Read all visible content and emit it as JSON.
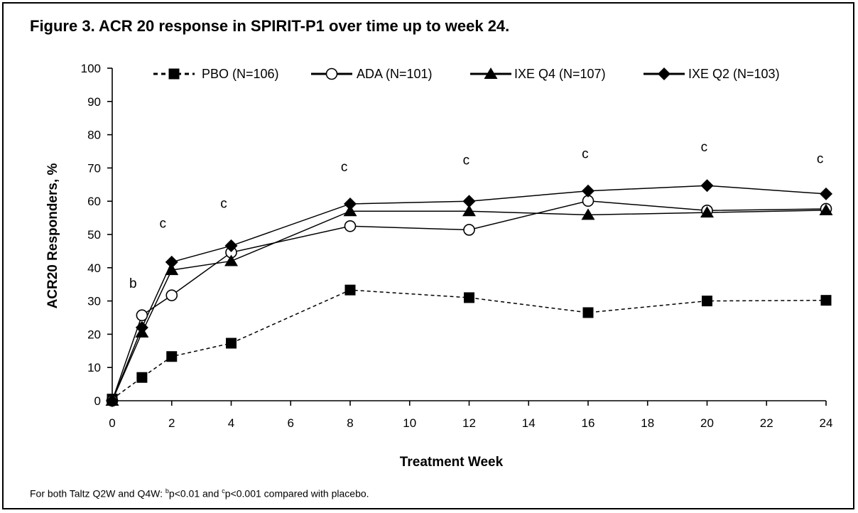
{
  "chart_data": {
    "type": "line",
    "title": "Figure 3. ACR 20 response in SPIRIT-P1 over time up to week 24.",
    "xlabel": "Treatment Week",
    "ylabel": "ACR20 Responders, %",
    "xlim": [
      0,
      24
    ],
    "ylim": [
      0,
      100
    ],
    "xticks": [
      0,
      2,
      4,
      6,
      8,
      10,
      12,
      14,
      16,
      18,
      20,
      22,
      24
    ],
    "yticks": [
      0,
      10,
      20,
      30,
      40,
      50,
      60,
      70,
      80,
      90,
      100
    ],
    "grid": false,
    "legend_position": "top",
    "series": [
      {
        "name": "PBO (N=106)",
        "marker": "square",
        "line": "dashed",
        "x": [
          0,
          1,
          2,
          4,
          8,
          12,
          16,
          20,
          24
        ],
        "y": [
          0.5,
          7,
          13.3,
          17.3,
          33.3,
          31,
          26.5,
          30,
          30.2
        ]
      },
      {
        "name": "ADA (N=101)",
        "marker": "circle-open",
        "line": "solid",
        "x": [
          0,
          1,
          2,
          4,
          8,
          12,
          16,
          20,
          24
        ],
        "y": [
          0,
          25.7,
          31.7,
          44.6,
          52.5,
          51.4,
          60.1,
          57.2,
          57.7
        ]
      },
      {
        "name": "IXE Q4 (N=107)",
        "marker": "triangle",
        "line": "solid",
        "x": [
          0,
          1,
          2,
          4,
          8,
          12,
          16,
          20,
          24
        ],
        "y": [
          0,
          20.5,
          39.3,
          42,
          57,
          57,
          55.9,
          56.6,
          57.3
        ]
      },
      {
        "name": "IXE Q2 (N=103)",
        "marker": "diamond",
        "line": "solid",
        "x": [
          0,
          1,
          2,
          4,
          8,
          12,
          16,
          20,
          24
        ],
        "y": [
          0,
          22,
          41.7,
          46.6,
          59.2,
          60,
          63.1,
          64.7,
          62.2
        ]
      }
    ],
    "annotations": [
      {
        "text": "b",
        "x": 0.7,
        "y": 34
      },
      {
        "text": "c",
        "x": 1.7,
        "y": 52
      },
      {
        "text": "c",
        "x": 3.75,
        "y": 58
      },
      {
        "text": "c",
        "x": 7.8,
        "y": 69
      },
      {
        "text": "c",
        "x": 11.9,
        "y": 71
      },
      {
        "text": "c",
        "x": 15.9,
        "y": 73
      },
      {
        "text": "c",
        "x": 19.9,
        "y": 75
      },
      {
        "text": "c",
        "x": 23.8,
        "y": 71.5
      }
    ],
    "footnote": {
      "prefix": "For both Taltz Q2W and Q4W: ",
      "b_sup": "b",
      "b_text": "p<0.01 and ",
      "c_sup": "c",
      "c_text": "p<0.001 compared with placebo."
    }
  }
}
